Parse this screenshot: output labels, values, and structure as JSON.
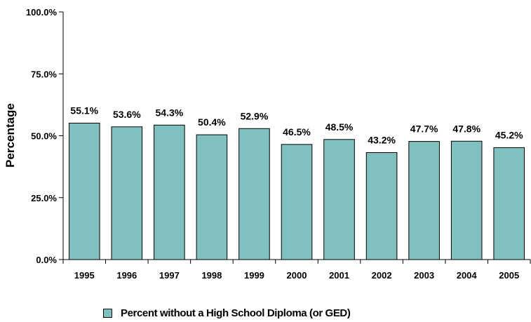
{
  "chart_data": {
    "type": "bar",
    "categories": [
      "1995",
      "1996",
      "1997",
      "1998",
      "1999",
      "2000",
      "2001",
      "2002",
      "2003",
      "2004",
      "2005"
    ],
    "series": [
      {
        "name": "Percent without a High School Diploma (or GED)",
        "values": [
          55.1,
          53.6,
          54.3,
          50.4,
          52.9,
          46.5,
          48.5,
          43.2,
          47.7,
          47.8,
          45.2
        ]
      }
    ],
    "value_labels": [
      "55.1%",
      "53.6%",
      "54.3%",
      "50.4%",
      "52.9%",
      "46.5%",
      "48.5%",
      "43.2%",
      "47.7%",
      "47.8%",
      "45.2%"
    ],
    "title": "",
    "xlabel": "",
    "ylabel": "Percentage",
    "ylim": [
      0,
      100
    ],
    "yticks": [
      0,
      25,
      50,
      75,
      100
    ],
    "ytick_labels": [
      "0.0%",
      "25.0%",
      "50.0%",
      "75.0%",
      "100.0%"
    ],
    "grid": false,
    "legend_position": "bottom",
    "bar_color": "#80C0BE"
  }
}
